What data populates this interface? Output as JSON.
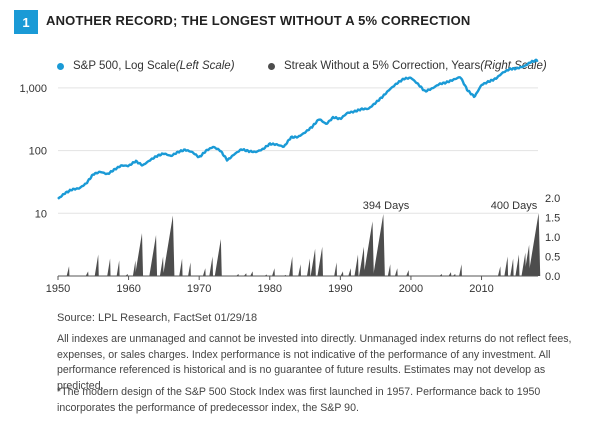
{
  "header": {
    "number": "1",
    "title": "ANOTHER RECORD; THE LONGEST WITHOUT A 5% CORRECTION"
  },
  "legend": {
    "sp500": {
      "label": "S&P 500",
      "suffix": ", Log Scale ",
      "scale": "(Left Scale)",
      "color": "#1a9ad6"
    },
    "streak": {
      "label": "Streak Without a 5% Correction",
      "suffix": ", Years ",
      "scale": "(Right Scale)",
      "color": "#4d4d4d"
    }
  },
  "chart_data": {
    "type": "line+area",
    "title": "ANOTHER RECORD; THE LONGEST WITHOUT A 5% CORRECTION",
    "x_ticks": [
      "1950",
      "1960",
      "1970",
      "1980",
      "1990",
      "2000",
      "2010"
    ],
    "xlim": [
      1950,
      2018
    ],
    "left_axis": {
      "scale": "log",
      "ticks": [
        "10",
        "100",
        "1,000"
      ],
      "ylim": [
        1,
        3000
      ]
    },
    "right_axis": {
      "ticks": [
        "0.0",
        "0.5",
        "1.0",
        "1.5",
        "2.0"
      ],
      "ylim": [
        0,
        2.0
      ]
    },
    "series": [
      {
        "name": "S&P 500, Log Scale",
        "axis": "left",
        "points": [
          [
            1950,
            17
          ],
          [
            1951,
            21
          ],
          [
            1952,
            24
          ],
          [
            1953,
            25
          ],
          [
            1954,
            30
          ],
          [
            1955,
            42
          ],
          [
            1956,
            46
          ],
          [
            1957,
            42
          ],
          [
            1958,
            50
          ],
          [
            1959,
            58
          ],
          [
            1960,
            57
          ],
          [
            1961,
            68
          ],
          [
            1962,
            58
          ],
          [
            1963,
            70
          ],
          [
            1964,
            82
          ],
          [
            1965,
            90
          ],
          [
            1966,
            82
          ],
          [
            1967,
            95
          ],
          [
            1968,
            103
          ],
          [
            1969,
            95
          ],
          [
            1970,
            78
          ],
          [
            1971,
            100
          ],
          [
            1972,
            115
          ],
          [
            1973,
            100
          ],
          [
            1974,
            70
          ],
          [
            1975,
            88
          ],
          [
            1976,
            105
          ],
          [
            1977,
            98
          ],
          [
            1978,
            95
          ],
          [
            1979,
            105
          ],
          [
            1980,
            128
          ],
          [
            1981,
            125
          ],
          [
            1982,
            115
          ],
          [
            1983,
            163
          ],
          [
            1984,
            165
          ],
          [
            1985,
            195
          ],
          [
            1986,
            240
          ],
          [
            1987,
            320
          ],
          [
            1988,
            265
          ],
          [
            1989,
            340
          ],
          [
            1990,
            320
          ],
          [
            1991,
            400
          ],
          [
            1992,
            420
          ],
          [
            1993,
            460
          ],
          [
            1994,
            465
          ],
          [
            1995,
            580
          ],
          [
            1996,
            730
          ],
          [
            1997,
            950
          ],
          [
            1998,
            1180
          ],
          [
            1999,
            1400
          ],
          [
            2000,
            1450
          ],
          [
            2001,
            1150
          ],
          [
            2002,
            880
          ],
          [
            2003,
            980
          ],
          [
            2004,
            1150
          ],
          [
            2005,
            1220
          ],
          [
            2006,
            1350
          ],
          [
            2007,
            1500
          ],
          [
            2008,
            920
          ],
          [
            2009,
            720
          ],
          [
            2010,
            1120
          ],
          [
            2011,
            1260
          ],
          [
            2012,
            1400
          ],
          [
            2013,
            1750
          ],
          [
            2014,
            2000
          ],
          [
            2015,
            2050
          ],
          [
            2016,
            2200
          ],
          [
            2017,
            2600
          ],
          [
            2018,
            2800
          ]
        ]
      },
      {
        "name": "Streak Without a 5% Correction, Years",
        "axis": "right",
        "peaks": [
          [
            1951.5,
            0.25
          ],
          [
            1954.2,
            0.12
          ],
          [
            1955.6,
            0.55
          ],
          [
            1957.3,
            0.45
          ],
          [
            1958.6,
            0.4
          ],
          [
            1959.8,
            0.05
          ],
          [
            1960.9,
            0.4
          ],
          [
            1961.7,
            1.1
          ],
          [
            1963.7,
            1.05
          ],
          [
            1964.8,
            0.5
          ],
          [
            1966.0,
            1.55
          ],
          [
            1967.5,
            0.45
          ],
          [
            1968.7,
            0.35
          ],
          [
            1970.8,
            0.2
          ],
          [
            1971.8,
            0.5
          ],
          [
            1972.9,
            0.95
          ],
          [
            1975.5,
            0.05
          ],
          [
            1976.6,
            0.07
          ],
          [
            1977.5,
            0.12
          ],
          [
            1979.5,
            0.04
          ],
          [
            1980.6,
            0.2
          ],
          [
            1982.2,
            0.03
          ],
          [
            1983.1,
            0.5
          ],
          [
            1984.3,
            0.3
          ],
          [
            1985.6,
            0.45
          ],
          [
            1986.3,
            0.7
          ],
          [
            1987.3,
            0.75
          ],
          [
            1989.4,
            0.35
          ],
          [
            1990.3,
            0.12
          ],
          [
            1991.4,
            0.2
          ],
          [
            1992.4,
            0.55
          ],
          [
            1993.2,
            0.75
          ],
          [
            1994.3,
            1.4
          ],
          [
            1995.8,
            1.59
          ],
          [
            1997.0,
            0.3
          ],
          [
            1998.0,
            0.2
          ],
          [
            1999.6,
            0.15
          ],
          [
            2004.3,
            0.05
          ],
          [
            2005.6,
            0.1
          ],
          [
            2006.2,
            0.05
          ],
          [
            2007.1,
            0.3
          ],
          [
            2012.6,
            0.25
          ],
          [
            2013.6,
            0.5
          ],
          [
            2014.4,
            0.45
          ],
          [
            2015.2,
            0.55
          ],
          [
            2016.1,
            0.6
          ],
          [
            2016.6,
            0.8
          ],
          [
            2017.8,
            1.62
          ]
        ]
      }
    ],
    "annotations": [
      "394 Days",
      "400 Days"
    ]
  },
  "footer": {
    "source": "Source: LPL Research, FactSet 01/29/18",
    "disclaimer": "All indexes are unmanaged and cannot be invested into directly. Unmanaged index returns do not reflect fees, expenses, or sales charges. Index performance is not indicative of the performance of any investment. All performance referenced is historical and is no guarantee of future results. Estimates may not develop as predicted.",
    "footnote": "*The modern design of the S&P 500 Stock Index was first launched in 1957. Performance back to 1950 incorporates the performance of predecessor index, the S&P 90."
  }
}
